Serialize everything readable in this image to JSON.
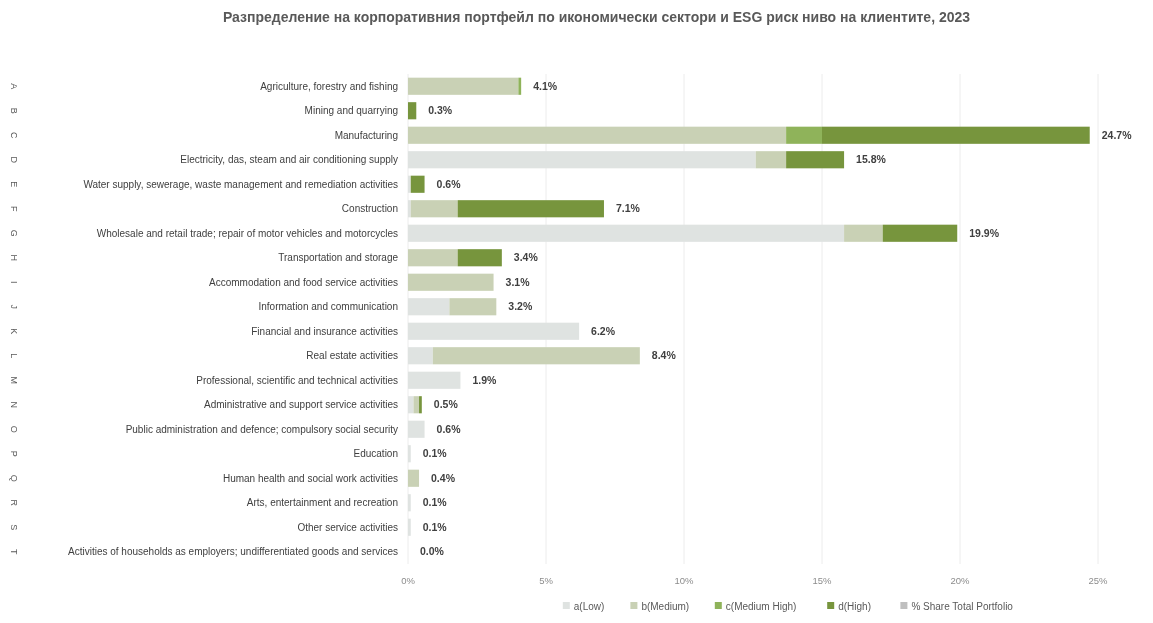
{
  "chart_data": {
    "type": "bar",
    "orientation": "horizontal",
    "stacked": true,
    "title": "Разпределение на корпоративния портфейл по икономически сектори и ESG риск ниво на клиентите, 2023",
    "categories": [
      "Agriculture, forestry and fishing",
      "Mining and quarrying",
      "Manufacturing",
      "Electricity, das, steam and air conditioning supply",
      "Water supply, sewerage, waste management and remediation activities",
      "Construction",
      "Wholesale and retail trade; repair of motor vehicles and motorcycles",
      "Transportation and storage",
      "Accommodation and food service activities",
      "Information and communication",
      "Financial and insurance activities",
      "Real estate activities",
      "Professional, scientific and technical activities",
      "Administrative and support service activities",
      "Public administration and defence; compulsory social security",
      "Education",
      "Human health and social work activities",
      "Arts, entertainment and recreation",
      "Other service activities",
      "Activities of households as employers; undifferentiated goods and services"
    ],
    "annotations": [
      "A",
      "B",
      "C",
      "D",
      "E",
      "F",
      "G",
      "H",
      "I",
      "J",
      "K",
      "L",
      "M",
      "N",
      "O",
      "P",
      "Q",
      "R",
      "S",
      "T"
    ],
    "series": [
      {
        "name": "a(Low)",
        "color": "#dfe3e1",
        "values": [
          0,
          0,
          0,
          12.6,
          0.1,
          0.1,
          15.8,
          0,
          0,
          1.5,
          6.2,
          0.9,
          1.9,
          0.2,
          0.6,
          0.1,
          0,
          0.1,
          0.1,
          0
        ]
      },
      {
        "name": "b(Medium)",
        "color": "#c9d1b5",
        "values": [
          4.0,
          0,
          13.7,
          1.1,
          0,
          1.7,
          1.4,
          1.8,
          3.1,
          1.7,
          0,
          7.5,
          0,
          0.2,
          0,
          0,
          0.4,
          0,
          0,
          0
        ]
      },
      {
        "name": "c(Medium High)",
        "color": "#8fb35a",
        "values": [
          0.1,
          0,
          1.3,
          0,
          0,
          0,
          0,
          0,
          0,
          0,
          0,
          0,
          0,
          0,
          0,
          0,
          0,
          0,
          0,
          0
        ]
      },
      {
        "name": "d(High)",
        "color": "#77953d",
        "values": [
          0,
          0.3,
          9.7,
          2.1,
          0.5,
          5.3,
          2.7,
          1.6,
          0,
          0,
          0,
          0,
          0,
          0.1,
          0,
          0,
          0,
          0,
          0,
          0
        ]
      },
      {
        "name": "% Share Total Portfolio",
        "color": "#bfbfbf",
        "values": [
          null,
          null,
          null,
          null,
          null,
          null,
          null,
          null,
          null,
          null,
          null,
          null,
          null,
          null,
          null,
          null,
          null,
          null,
          null,
          null
        ]
      }
    ],
    "totals": [
      "4.1%",
      "0.3%",
      "24.7%",
      "15.8%",
      "0.6%",
      "7.1%",
      "19.9%",
      "3.4%",
      "3.1%",
      "3.2%",
      "6.2%",
      "8.4%",
      "1.9%",
      "0.5%",
      "0.6%",
      "0.1%",
      "0.4%",
      "0.1%",
      "0.1%",
      "0.0%"
    ],
    "xlim": [
      0,
      25
    ],
    "xticks": [
      {
        "value": 0,
        "label": "0%"
      },
      {
        "value": 5,
        "label": "5%"
      },
      {
        "value": 10,
        "label": "10%"
      },
      {
        "value": 15,
        "label": "15%"
      },
      {
        "value": 20,
        "label": "20%"
      },
      {
        "value": 25,
        "label": "25%"
      }
    ],
    "grid": "x",
    "legend": "bottom"
  }
}
